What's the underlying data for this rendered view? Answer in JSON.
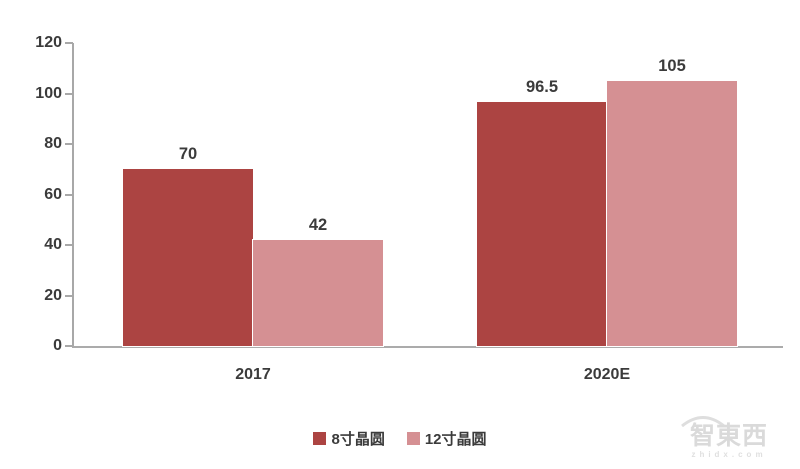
{
  "chart_data": {
    "type": "bar",
    "categories": [
      "2017",
      "2020E"
    ],
    "series": [
      {
        "name": "8寸晶圆",
        "color": "#ac4442",
        "values": [
          70,
          96.5
        ],
        "labels": [
          "70",
          "96.5"
        ]
      },
      {
        "name": "12寸晶圆",
        "color": "#d59093",
        "values": [
          42,
          105
        ],
        "labels": [
          "42",
          "105"
        ]
      }
    ],
    "title": "",
    "xlabel": "",
    "ylabel": "",
    "ylim": [
      0,
      120
    ],
    "yticks": [
      0,
      20,
      40,
      60,
      80,
      100,
      120
    ],
    "grid": false,
    "legend_position": "bottom"
  },
  "colors": {
    "axis": "#a8a8a8",
    "text": "#3b3b3b",
    "series1": "#ac4442",
    "series2": "#d59093"
  },
  "watermark": {
    "text": "智東西",
    "subtext": "zhidx.com"
  }
}
